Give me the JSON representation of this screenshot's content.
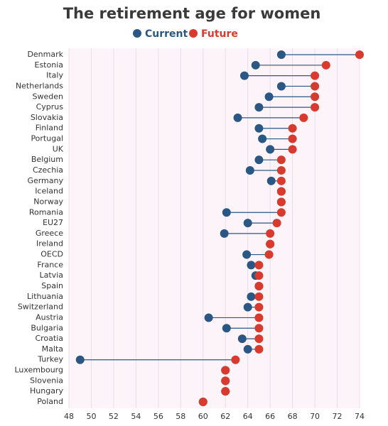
{
  "chart_data": {
    "type": "dumbbell",
    "title": "The retirement age for women",
    "categories": [
      "Denmark",
      "Estonia",
      "Italy",
      "Netherlands",
      "Sweden",
      "Cyprus",
      "Slovakia",
      "Finland",
      "Portugal",
      "UK",
      "Belgium",
      "Czechia",
      "Germany",
      "Iceland",
      "Norway",
      "Romania",
      "EU27",
      "Greece",
      "Ireland",
      "OECD",
      "France",
      "Latvia",
      "Spain",
      "Lithuania",
      "Switzerland",
      "Austria",
      "Bulgaria",
      "Croatia",
      "Malta",
      "Turkey",
      "Luxembourg",
      "Slovenia",
      "Hungary",
      "Poland"
    ],
    "series": [
      {
        "name": "Current",
        "color": "#2a5783",
        "values": [
          67,
          64.7,
          63.7,
          67,
          65.9,
          65,
          63.1,
          65,
          65.3,
          66,
          65,
          64.2,
          66.1,
          67,
          67,
          62.1,
          64,
          61.9,
          66,
          63.9,
          64.3,
          64.7,
          65,
          64.3,
          64,
          60.5,
          62.1,
          63.5,
          64,
          49,
          62,
          62,
          62,
          60
        ]
      },
      {
        "name": "Future",
        "color": "#d93a2e",
        "values": [
          74,
          71,
          70,
          70,
          70,
          70,
          69,
          68,
          68,
          68,
          67,
          67,
          67,
          67,
          67,
          67,
          66.6,
          66,
          66,
          65.9,
          65,
          65,
          65,
          65,
          65,
          65,
          65,
          65,
          65,
          62.9,
          62,
          62,
          62,
          60
        ]
      }
    ],
    "xlim": [
      48,
      74
    ],
    "xticks": [
      48,
      50,
      52,
      54,
      56,
      58,
      60,
      62,
      64,
      66,
      68,
      70,
      72,
      74
    ],
    "grid": true
  }
}
